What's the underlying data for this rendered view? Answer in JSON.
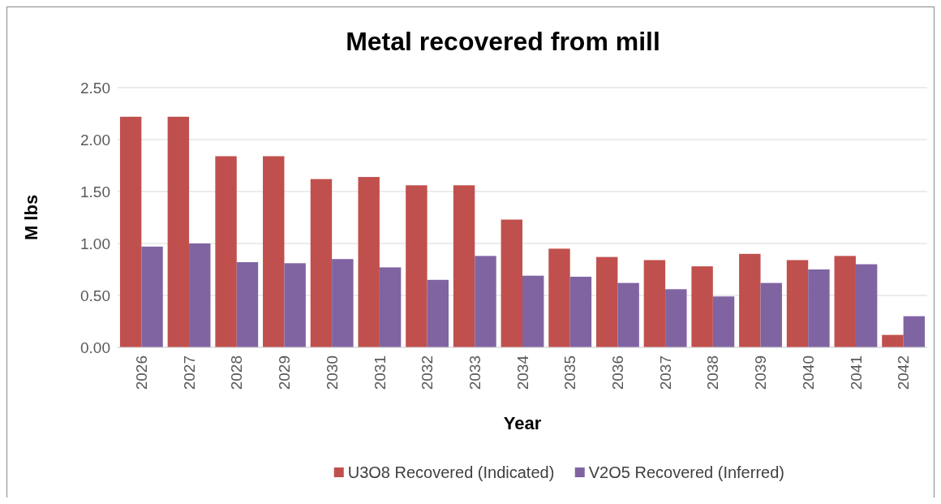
{
  "chart_data": {
    "type": "bar",
    "title": "Metal recovered from mill",
    "xlabel": "Year",
    "ylabel": "M lbs",
    "categories": [
      "2026",
      "2027",
      "2028",
      "2029",
      "2030",
      "2031",
      "2032",
      "2033",
      "2034",
      "2035",
      "2036",
      "2037",
      "2038",
      "2039",
      "2040",
      "2041",
      "2042"
    ],
    "series": [
      {
        "name": "U3O8 Recovered (Indicated)",
        "color": "#c0504d",
        "values": [
          2.22,
          2.22,
          1.84,
          1.84,
          1.62,
          1.64,
          1.56,
          1.56,
          1.23,
          0.95,
          0.87,
          0.84,
          0.78,
          0.9,
          0.84,
          0.88,
          0.12
        ]
      },
      {
        "name": "V2O5 Recovered (Inferred)",
        "color": "#8064a2",
        "values": [
          0.97,
          1.0,
          0.82,
          0.81,
          0.85,
          0.77,
          0.65,
          0.88,
          0.69,
          0.68,
          0.62,
          0.56,
          0.49,
          0.62,
          0.75,
          0.8,
          0.3
        ]
      }
    ],
    "ylim": [
      0,
      2.5
    ],
    "yticks": [
      {
        "value": 0,
        "label": "0.00"
      },
      {
        "value": 0.5,
        "label": "0.50"
      },
      {
        "value": 1,
        "label": "1.00"
      },
      {
        "value": 1.5,
        "label": "1.50"
      },
      {
        "value": 2,
        "label": "2.00"
      },
      {
        "value": 2.5,
        "label": "2.50"
      }
    ],
    "grid": "y",
    "legend": "bottom"
  }
}
